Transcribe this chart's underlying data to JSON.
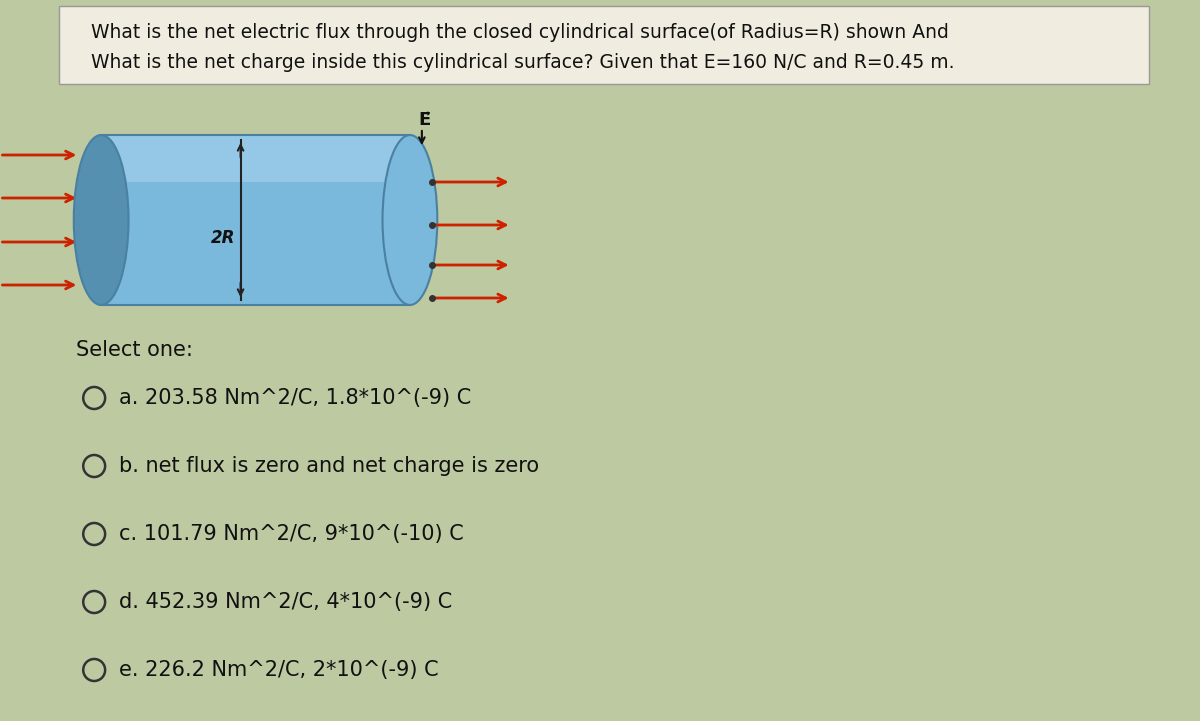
{
  "title_line1": "What is the net electric flux through the closed cylindrical surface(of Radius=R) shown And",
  "title_line2": "What is the net charge inside this cylindrical surface? Given that E=160 N/C and R=0.45 m.",
  "select_label": "Select one:",
  "options": [
    "a. 203.58 Nm^2/C, 1.8*10^(-9) C",
    "b. net flux is zero and net charge is zero",
    "c. 101.79 Nm^2/C, 9*10^(-10) C",
    "d. 452.39 Nm^2/C, 4*10^(-9) C",
    "e. 226.2 Nm^2/C, 2*10^(-9) C"
  ],
  "bg_color": "#bdc9a1",
  "box_bg": "#f0ede0",
  "text_color": "#111111",
  "cyl_body_color": "#7ab8dc",
  "cyl_left_color": "#5590b0",
  "cyl_top_color": "#a8d4f0",
  "cyl_edge_color": "#4a80a0",
  "arrow_color": "#cc2200",
  "label_2R": "2R",
  "label_E": "E⃗",
  "box_edge": "#999999",
  "circle_color": "#333333"
}
